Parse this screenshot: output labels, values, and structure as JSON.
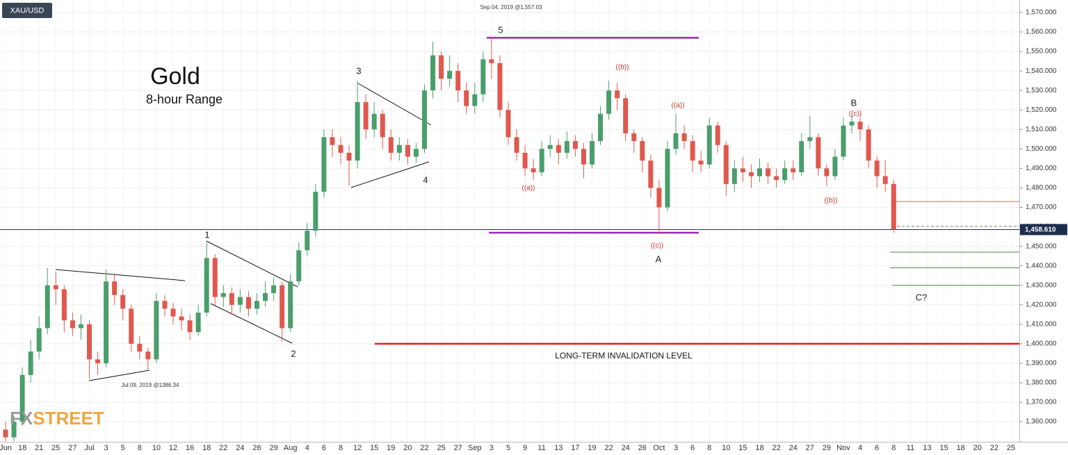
{
  "symbol": "XAU/USD",
  "title": "Gold",
  "subtitle": "8-hour Range",
  "high_note": "Sep 04, 2019 @1,557.03",
  "low_note": "Jul 09, 2019 @1386.34",
  "invalidation_label": "LONG-TERM INVALIDATION LEVEL",
  "logo": {
    "fx": "FX",
    "street": "STREET"
  },
  "annotations": [
    {
      "text": "5",
      "color": "#222"
    },
    {
      "text": "3",
      "color": "#222"
    },
    {
      "text": "4",
      "color": "#222"
    },
    {
      "text": "1",
      "color": "#222"
    },
    {
      "text": "2",
      "color": "#222"
    },
    {
      "text": "((b))",
      "color": "#c0392b"
    },
    {
      "text": "((a))",
      "color": "#c0392b"
    },
    {
      "text": "((a))",
      "color": "#c0392b"
    },
    {
      "text": "((c))",
      "color": "#c0392b"
    },
    {
      "text": "A",
      "color": "#222"
    },
    {
      "text": "B",
      "color": "#222"
    },
    {
      "text": "((c))",
      "color": "#c0392b"
    },
    {
      "text": "((b))",
      "color": "#c0392b"
    },
    {
      "text": "C?",
      "color": "#222"
    }
  ],
  "chart_data": {
    "type": "candlestick",
    "up_color": "#4a9e6b",
    "down_color": "#e0584d",
    "ylim": [
      1349.7,
      1576.4
    ],
    "yticks": [
      {
        "value": 1360,
        "label": "1,360.000"
      },
      {
        "value": 1370,
        "label": "1,370.000"
      },
      {
        "value": 1380,
        "label": "1,380.000"
      },
      {
        "value": 1390,
        "label": "1,390.000"
      },
      {
        "value": 1400,
        "label": "1,400.000"
      },
      {
        "value": 1410,
        "label": "1,410.000"
      },
      {
        "value": 1420,
        "label": "1,420.000"
      },
      {
        "value": 1430,
        "label": "1,430.000"
      },
      {
        "value": 1440,
        "label": "1,440.000"
      },
      {
        "value": 1450,
        "label": "1,450.000"
      },
      {
        "value": 1460,
        "label": "1,460.000"
      },
      {
        "value": 1470,
        "label": "1,470.000"
      },
      {
        "value": 1480,
        "label": "1,480.000"
      },
      {
        "value": 1490,
        "label": "1,490.000"
      },
      {
        "value": 1500,
        "label": "1,500.000"
      },
      {
        "value": 1510,
        "label": "1,510.000"
      },
      {
        "value": 1520,
        "label": "1,520.000"
      },
      {
        "value": 1530,
        "label": "1,530.000"
      },
      {
        "value": 1540,
        "label": "1,540.000"
      },
      {
        "value": 1550,
        "label": "1,550.000"
      },
      {
        "value": 1560,
        "label": "1,560.000"
      },
      {
        "value": 1570,
        "label": "1,570.000"
      }
    ],
    "grid": true,
    "last_price": {
      "value": 1458.61,
      "label": "1,458.610",
      "color": "#1f2d4d"
    },
    "levels": [
      {
        "value": 1557,
        "color": "#9c27b0"
      },
      {
        "value": 1457,
        "color": "#9c27b0"
      },
      {
        "value": 1400,
        "color": "#e31b1b"
      },
      {
        "value": 1473,
        "color": "#f05050"
      },
      {
        "value": 1447,
        "color": "#3f8f3f"
      },
      {
        "value": 1439,
        "color": "#3f8f3f"
      },
      {
        "value": 1430,
        "color": "#3f8f3f"
      },
      {
        "value": 1460.3,
        "color": "#888888"
      }
    ],
    "categories": [
      "Jun",
      null,
      "18",
      null,
      "21",
      null,
      "25",
      null,
      "27",
      null,
      "Jul",
      null,
      "3",
      null,
      "5",
      null,
      "8",
      null,
      "10",
      null,
      "12",
      null,
      "16",
      null,
      "18",
      null,
      "22",
      null,
      "24",
      null,
      "26",
      null,
      "29",
      null,
      "Aug",
      null,
      "4",
      null,
      "6",
      null,
      "8",
      null,
      "12",
      null,
      "15",
      null,
      "19",
      null,
      "20",
      null,
      "22",
      null,
      "25",
      null,
      "27",
      null,
      "Sep",
      null,
      "3",
      null,
      "5",
      null,
      "9",
      null,
      "11",
      null,
      "13",
      null,
      "17",
      null,
      "19",
      null,
      "22",
      null,
      "24",
      null,
      "26",
      null,
      "Oct",
      null,
      "3",
      null,
      "6",
      null,
      "8",
      null,
      "10",
      null,
      "15",
      null,
      "18",
      null,
      "22",
      null,
      "24",
      null,
      "27",
      null,
      "29",
      null,
      "Nov",
      null,
      "4",
      null,
      "6",
      null,
      "8",
      null,
      "11",
      null,
      "13",
      null,
      "15",
      null,
      "18",
      null,
      "20",
      null,
      "22",
      null,
      "25",
      null
    ],
    "open": [
      1356,
      1352,
      1360,
      1384,
      1396,
      1408,
      1430,
      1428,
      1412,
      1408,
      1410,
      1392,
      1390,
      1432,
      1425,
      1418,
      1400,
      1396,
      1392,
      1422,
      1418,
      1414,
      1412,
      1406,
      1416,
      1444,
      1424,
      1426,
      1420,
      1424,
      1418,
      1422,
      1426,
      1430,
      1408,
      1432,
      1448,
      1458,
      1478,
      1506,
      1502,
      1498,
      1494,
      1524,
      1510,
      1518,
      1506,
      1498,
      1502,
      1496,
      1500,
      1530,
      1548,
      1536,
      1540,
      1530,
      1522,
      1528,
      1546,
      1544,
      1520,
      1506,
      1498,
      1490,
      1488,
      1500,
      1502,
      1498,
      1504,
      1500,
      1492,
      1504,
      1518,
      1530,
      1526,
      1508,
      1504,
      1494,
      1480,
      1470,
      1500,
      1508,
      1504,
      1494,
      1492,
      1512,
      1502,
      1482,
      1490,
      1488,
      1486,
      1490,
      1486,
      1484,
      1490,
      1488,
      1504,
      1506,
      1490,
      1486,
      1496,
      1512,
      1514,
      1510,
      1494,
      1486,
      1482,
      null,
      null,
      null,
      null,
      null,
      null,
      null,
      null,
      null,
      null,
      null,
      null,
      null,
      null,
      null
    ],
    "high": [
      1360,
      1363,
      1388,
      1402,
      1414,
      1439,
      1437,
      1430,
      1416,
      1415,
      1412,
      1396,
      1438,
      1436,
      1428,
      1420,
      1404,
      1398,
      1426,
      1425,
      1421,
      1418,
      1415,
      1420,
      1452,
      1446,
      1430,
      1429,
      1428,
      1427,
      1426,
      1432,
      1434,
      1432,
      1436,
      1452,
      1462,
      1482,
      1510,
      1510,
      1506,
      1502,
      1535,
      1528,
      1524,
      1520,
      1510,
      1506,
      1505,
      1503,
      1533,
      1555,
      1550,
      1548,
      1544,
      1534,
      1534,
      1550,
      1557.03,
      1548,
      1524,
      1510,
      1502,
      1495,
      1504,
      1507,
      1505,
      1509,
      1507,
      1503,
      1508,
      1522,
      1535,
      1534,
      1528,
      1510,
      1506,
      1497,
      1484,
      1504,
      1518,
      1512,
      1507,
      1499,
      1516,
      1514,
      1504,
      1494,
      1496,
      1492,
      1495,
      1493,
      1490,
      1494,
      1494,
      1508,
      1517,
      1508,
      1492,
      1500,
      1516,
      1517,
      1516,
      1512,
      1496,
      1494,
      1484,
      null,
      null,
      null,
      null,
      null,
      null,
      null,
      null,
      null,
      null,
      null,
      null,
      null,
      null,
      null
    ],
    "low": [
      1350,
      1350,
      1358,
      1380,
      1392,
      1405,
      1420,
      1406,
      1404,
      1402,
      1382,
      1384,
      1388,
      1420,
      1412,
      1396,
      1392,
      1386.34,
      1390,
      1414,
      1410,
      1407,
      1402,
      1404,
      1414,
      1420,
      1419,
      1415,
      1416,
      1414,
      1415,
      1419,
      1422,
      1401,
      1406,
      1430,
      1445,
      1455,
      1475,
      1496,
      1492,
      1481,
      1490,
      1505,
      1506,
      1500,
      1494,
      1494,
      1492,
      1493,
      1498,
      1526,
      1530,
      1532,
      1524,
      1518,
      1518,
      1524,
      1536,
      1516,
      1502,
      1494,
      1486,
      1484,
      1486,
      1496,
      1492,
      1495,
      1496,
      1485,
      1490,
      1502,
      1515,
      1520,
      1504,
      1498,
      1488,
      1475,
      1457,
      1468,
      1497,
      1500,
      1488,
      1488,
      1490,
      1498,
      1476,
      1478,
      1483,
      1480,
      1483,
      1482,
      1480,
      1482,
      1484,
      1486,
      1500,
      1486,
      1481,
      1484,
      1494,
      1508,
      1504,
      1490,
      1480,
      1478,
      1457,
      null,
      null,
      null,
      null,
      null,
      null,
      null,
      null,
      null,
      null,
      null,
      null,
      null,
      null,
      null
    ],
    "close": [
      1352,
      1360,
      1384,
      1396,
      1408,
      1430,
      1428,
      1412,
      1408,
      1410,
      1392,
      1390,
      1432,
      1425,
      1418,
      1400,
      1396,
      1392,
      1422,
      1418,
      1414,
      1412,
      1406,
      1416,
      1444,
      1424,
      1426,
      1420,
      1424,
      1418,
      1422,
      1426,
      1430,
      1408,
      1432,
      1448,
      1458,
      1478,
      1506,
      1502,
      1498,
      1494,
      1524,
      1510,
      1518,
      1506,
      1498,
      1502,
      1496,
      1500,
      1530,
      1548,
      1536,
      1540,
      1530,
      1522,
      1528,
      1546,
      1544,
      1520,
      1506,
      1498,
      1490,
      1488,
      1500,
      1502,
      1498,
      1504,
      1500,
      1492,
      1504,
      1518,
      1530,
      1526,
      1508,
      1504,
      1494,
      1480,
      1470,
      1500,
      1508,
      1504,
      1494,
      1492,
      1512,
      1502,
      1482,
      1490,
      1488,
      1486,
      1490,
      1486,
      1484,
      1490,
      1488,
      1504,
      1506,
      1490,
      1486,
      1496,
      1512,
      1514,
      1510,
      1494,
      1486,
      1482,
      1458.61,
      null,
      null,
      null,
      null,
      null,
      null,
      null,
      null,
      null,
      null,
      null,
      null,
      null,
      null,
      null
    ]
  }
}
